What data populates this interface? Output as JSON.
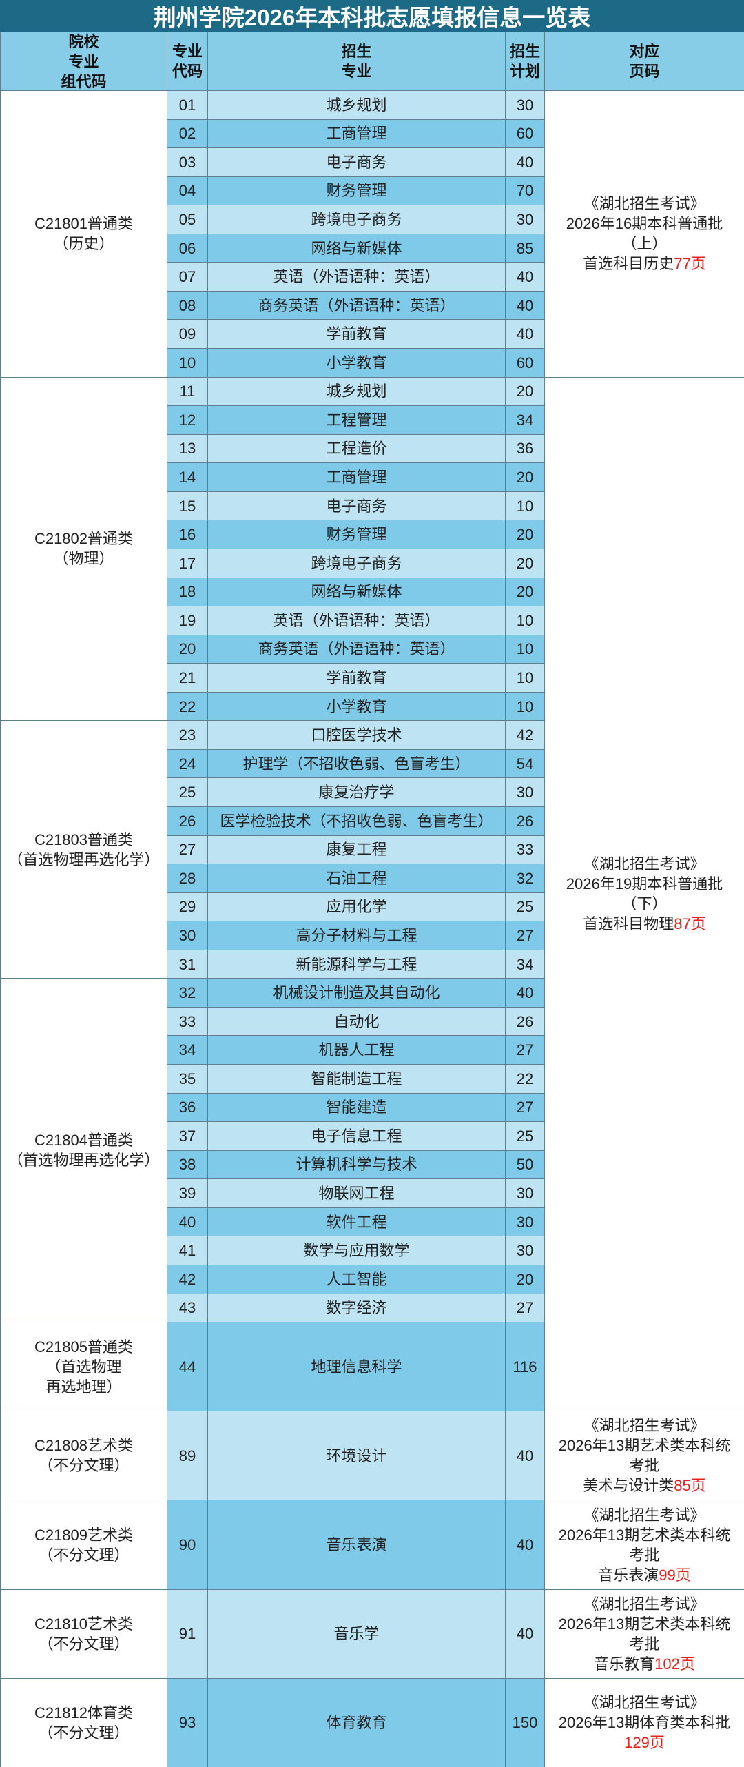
{
  "title": "荆州学院2026年本科批志愿填报信息一览表",
  "header": [
    [
      "院校",
      "专业",
      "组代码"
    ],
    [
      "专业",
      "代码"
    ],
    [
      "招生",
      "专业"
    ],
    [
      "招生",
      "计划"
    ],
    [
      "对应",
      "页码"
    ]
  ],
  "sections": [
    {
      "note": {
        "lines": [
          "《湖北招生考试》",
          "2026年16期本科普通批",
          "（上）"
        ],
        "last": "首选科目历史",
        "page": "77页"
      },
      "groups": [
        {
          "code": [
            "C21801普通类",
            "（历史）"
          ],
          "majors": [
            {
              "code": "01",
              "name": "城乡规划",
              "plan": 30
            },
            {
              "code": "02",
              "name": "工商管理",
              "plan": 60
            },
            {
              "code": "03",
              "name": "电子商务",
              "plan": 40
            },
            {
              "code": "04",
              "name": "财务管理",
              "plan": 70
            },
            {
              "code": "05",
              "name": "跨境电子商务",
              "plan": 30
            },
            {
              "code": "06",
              "name": "网络与新媒体",
              "plan": 85
            },
            {
              "code": "07",
              "name": "英语（外语语种：英语）",
              "plan": 40
            },
            {
              "code": "08",
              "name": "商务英语（外语语种：英语）",
              "plan": 40
            },
            {
              "code": "09",
              "name": "学前教育",
              "plan": 40
            },
            {
              "code": "10",
              "name": "小学教育",
              "plan": 60
            }
          ]
        }
      ]
    },
    {
      "note": {
        "lines": [
          "《湖北招生考试》",
          "2026年19期本科普通批",
          "（下）"
        ],
        "last": "首选科目物理",
        "page": "87页"
      },
      "groups": [
        {
          "code": [
            "C21802普通类",
            "（物理）"
          ],
          "majors": [
            {
              "code": "11",
              "name": "城乡规划",
              "plan": 20
            },
            {
              "code": "12",
              "name": "工程管理",
              "plan": 34
            },
            {
              "code": "13",
              "name": "工程造价",
              "plan": 36
            },
            {
              "code": "14",
              "name": "工商管理",
              "plan": 20
            },
            {
              "code": "15",
              "name": "电子商务",
              "plan": 10
            },
            {
              "code": "16",
              "name": "财务管理",
              "plan": 20
            },
            {
              "code": "17",
              "name": "跨境电子商务",
              "plan": 20
            },
            {
              "code": "18",
              "name": "网络与新媒体",
              "plan": 20
            },
            {
              "code": "19",
              "name": "英语（外语语种：英语）",
              "plan": 10
            },
            {
              "code": "20",
              "name": "商务英语（外语语种：英语）",
              "plan": 10
            },
            {
              "code": "21",
              "name": "学前教育",
              "plan": 10
            },
            {
              "code": "22",
              "name": "小学教育",
              "plan": 10
            }
          ]
        },
        {
          "code": [
            "C21803普通类",
            "（首选物理再选化学）"
          ],
          "majors": [
            {
              "code": "23",
              "name": "口腔医学技术",
              "plan": 42
            },
            {
              "code": "24",
              "name": "护理学（不招收色弱、色盲考生）",
              "plan": 54
            },
            {
              "code": "25",
              "name": "康复治疗学",
              "plan": 30
            },
            {
              "code": "26",
              "name": "医学检验技术（不招收色弱、色盲考生）",
              "plan": 26
            },
            {
              "code": "27",
              "name": "康复工程",
              "plan": 33
            },
            {
              "code": "28",
              "name": "石油工程",
              "plan": 32
            },
            {
              "code": "29",
              "name": "应用化学",
              "plan": 25
            },
            {
              "code": "30",
              "name": "高分子材料与工程",
              "plan": 27
            },
            {
              "code": "31",
              "name": "新能源科学与工程",
              "plan": 34
            }
          ]
        },
        {
          "code": [
            "C21804普通类",
            "（首选物理再选化学）"
          ],
          "majors": [
            {
              "code": "32",
              "name": "机械设计制造及其自动化",
              "plan": 40
            },
            {
              "code": "33",
              "name": "自动化",
              "plan": 26
            },
            {
              "code": "34",
              "name": "机器人工程",
              "plan": 27
            },
            {
              "code": "35",
              "name": "智能制造工程",
              "plan": 22
            },
            {
              "code": "36",
              "name": "智能建造",
              "plan": 27
            },
            {
              "code": "37",
              "name": "电子信息工程",
              "plan": 25
            },
            {
              "code": "38",
              "name": "计算机科学与技术",
              "plan": 50
            },
            {
              "code": "39",
              "name": "物联网工程",
              "plan": 30
            },
            {
              "code": "40",
              "name": "软件工程",
              "plan": 30
            },
            {
              "code": "41",
              "name": "数学与应用数学",
              "plan": 30
            },
            {
              "code": "42",
              "name": "人工智能",
              "plan": 20
            },
            {
              "code": "43",
              "name": "数字经济",
              "plan": 27
            }
          ]
        },
        {
          "code": [
            "C21805普通类",
            "（首选物理",
            "再选地理）"
          ],
          "majors": [
            {
              "code": "44",
              "name": "地理信息科学",
              "plan": 116
            }
          ]
        }
      ]
    },
    {
      "note": {
        "lines": [
          "《湖北招生考试》",
          "2026年13期艺术类本科统",
          "考批"
        ],
        "last": "美术与设计类",
        "page": "85页"
      },
      "groups": [
        {
          "code": [
            "C21808艺术类",
            "（不分文理）"
          ],
          "majors": [
            {
              "code": "89",
              "name": "环境设计",
              "plan": 40
            }
          ]
        }
      ]
    },
    {
      "note": {
        "lines": [
          "《湖北招生考试》",
          "2026年13期艺术类本科统",
          "考批"
        ],
        "last": "音乐表演",
        "page": "99页"
      },
      "groups": [
        {
          "code": [
            "C21809艺术类",
            "（不分文理）"
          ],
          "majors": [
            {
              "code": "90",
              "name": "音乐表演",
              "plan": 40
            }
          ]
        }
      ]
    },
    {
      "note": {
        "lines": [
          "《湖北招生考试》",
          "2026年13期艺术类本科统",
          "考批"
        ],
        "last": "音乐教育",
        "page": "102页"
      },
      "groups": [
        {
          "code": [
            "C21810艺术类",
            "（不分文理）"
          ],
          "majors": [
            {
              "code": "91",
              "name": "音乐学",
              "plan": 40
            }
          ]
        }
      ]
    },
    {
      "note": {
        "lines": [
          "《湖北招生考试》",
          "2026年13期体育类本科批"
        ],
        "page": "129页"
      },
      "groups": [
        {
          "code": [
            "C21812体育类",
            "（不分文理）"
          ],
          "majors": [
            {
              "code": "93",
              "name": "体育教育",
              "plan": 150
            }
          ]
        }
      ]
    }
  ]
}
